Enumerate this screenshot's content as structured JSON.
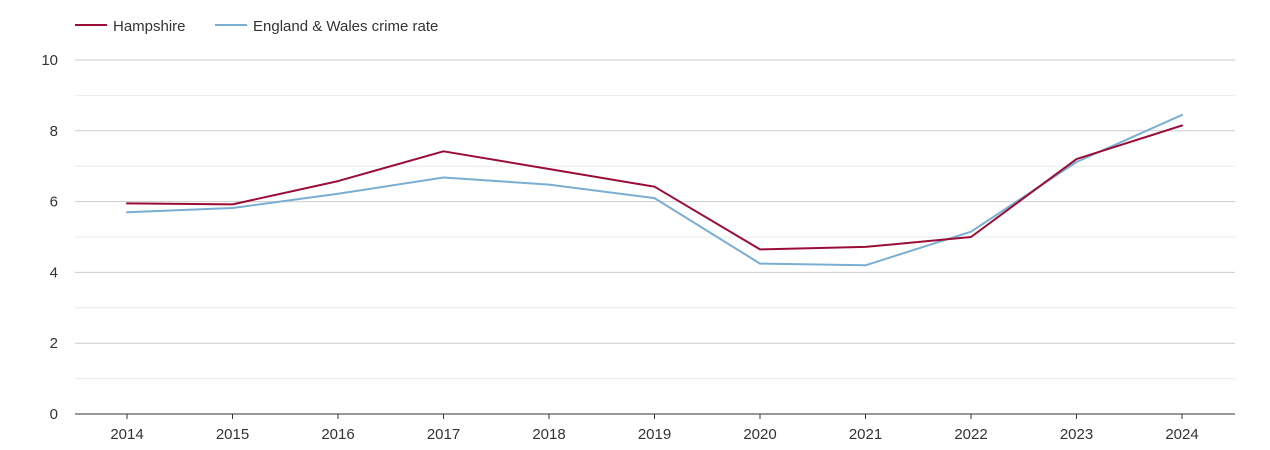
{
  "chart_data": {
    "type": "line",
    "title": "",
    "xlabel": "",
    "ylabel": "",
    "categories": [
      "2014",
      "2015",
      "2016",
      "2017",
      "2018",
      "2019",
      "2020",
      "2021",
      "2022",
      "2023",
      "2024"
    ],
    "ylim": [
      0,
      10
    ],
    "yticks": [
      "0",
      "2",
      "4",
      "6",
      "8",
      "10"
    ],
    "grid": true,
    "legend_position": "top-left",
    "series": [
      {
        "name": "Hampshire",
        "color": "#9b0d36",
        "values": [
          5.95,
          5.92,
          6.58,
          7.42,
          6.92,
          6.42,
          4.65,
          4.72,
          5.0,
          7.2,
          8.15
        ]
      },
      {
        "name": "England & Wales crime rate",
        "color": "#7aaed3",
        "values": [
          5.7,
          5.82,
          6.22,
          6.68,
          6.48,
          6.1,
          4.25,
          4.2,
          5.15,
          7.12,
          8.45
        ]
      }
    ]
  }
}
